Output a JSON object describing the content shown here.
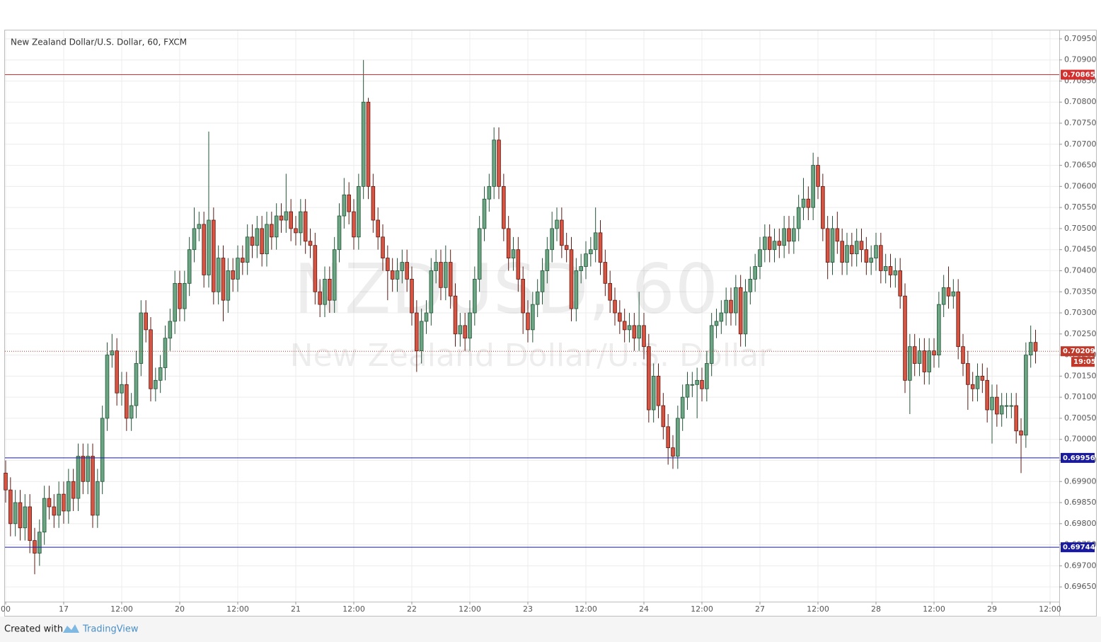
{
  "chart_data": {
    "type": "candlestick",
    "title": "New Zealand Dollar/U.S. Dollar, 60, FXCM",
    "watermark": {
      "symbol": "NZDUSD, 60",
      "description": "New Zealand Dollar/U.S. Dollar"
    },
    "up_color": "#6ba583",
    "up_border": "#225437",
    "down_color": "#d75442",
    "down_border": "#5b1a13",
    "x": [
      0,
      1,
      2,
      3,
      4,
      5,
      6,
      7,
      8,
      9,
      10,
      11,
      12,
      13,
      14,
      15,
      16,
      17,
      18,
      19,
      20,
      21,
      22,
      23,
      24,
      25,
      26,
      27,
      28,
      29,
      30,
      31,
      32,
      33,
      34,
      35,
      36,
      37,
      38,
      39,
      40,
      41,
      42,
      43,
      44,
      45,
      46,
      47,
      48,
      49,
      50,
      51,
      52,
      53,
      54,
      55,
      56,
      57,
      58,
      59,
      60,
      61,
      62,
      63,
      64,
      65,
      66,
      67,
      68,
      69,
      70,
      71,
      72,
      73,
      74,
      75,
      76,
      77,
      78,
      79,
      80,
      81,
      82,
      83,
      84,
      85,
      86,
      87,
      88,
      89,
      90,
      91,
      92,
      93,
      94,
      95,
      96,
      97,
      98,
      99,
      100,
      101,
      102,
      103,
      104,
      105,
      106,
      107,
      108,
      109,
      110,
      111,
      112,
      113,
      114,
      115,
      116,
      117,
      118,
      119,
      120,
      121,
      122,
      123,
      124,
      125,
      126,
      127,
      128,
      129,
      130,
      131,
      132,
      133,
      134,
      135,
      136,
      137,
      138,
      139,
      140,
      141,
      142,
      143,
      144,
      145,
      146,
      147,
      148,
      149,
      150,
      151,
      152,
      153,
      154,
      155,
      156,
      157,
      158,
      159,
      160,
      161,
      162,
      163,
      164,
      165,
      166,
      167,
      168,
      169,
      170,
      171,
      172,
      173,
      174,
      175,
      176,
      177,
      178,
      179,
      180,
      181,
      182,
      183,
      184,
      185,
      186,
      187,
      188,
      189,
      190,
      191,
      192,
      193,
      194,
      195,
      196,
      197,
      198,
      199,
      200,
      201,
      202,
      203,
      204,
      205,
      206,
      207,
      208,
      209,
      210,
      211,
      212,
      213
    ],
    "open": [
      0.6992,
      0.6988,
      0.698,
      0.6985,
      0.6979,
      0.6984,
      0.6976,
      0.6973,
      0.6978,
      0.6986,
      0.6984,
      0.6982,
      0.6987,
      0.6983,
      0.699,
      0.6986,
      0.6996,
      0.699,
      0.6996,
      0.6982,
      0.699,
      0.7005,
      0.702,
      0.7021,
      0.7011,
      0.7013,
      0.7005,
      0.7008,
      0.7018,
      0.703,
      0.7026,
      0.7012,
      0.7014,
      0.7017,
      0.7024,
      0.7028,
      0.7037,
      0.7031,
      0.7037,
      0.7045,
      0.705,
      0.7051,
      0.7039,
      0.7052,
      0.7035,
      0.7043,
      0.7033,
      0.704,
      0.7038,
      0.7043,
      0.7042,
      0.7048,
      0.7046,
      0.705,
      0.7044,
      0.7051,
      0.7048,
      0.7053,
      0.7052,
      0.7054,
      0.705,
      0.7049,
      0.7054,
      0.7047,
      0.7046,
      0.7035,
      0.7032,
      0.7038,
      0.7033,
      0.7045,
      0.7053,
      0.7058,
      0.7054,
      0.7048,
      0.706,
      0.708,
      0.706,
      0.7052,
      0.7048,
      0.7043,
      0.704,
      0.7038,
      0.704,
      0.7042,
      0.7038,
      0.703,
      0.7021,
      0.7028,
      0.703,
      0.704,
      0.7042,
      0.7036,
      0.7042,
      0.7034,
      0.7025,
      0.7027,
      0.7024,
      0.703,
      0.7038,
      0.705,
      0.7057,
      0.706,
      0.7071,
      0.706,
      0.705,
      0.7043,
      0.7045,
      0.7038,
      0.703,
      0.7026,
      0.7032,
      0.7035,
      0.704,
      0.7045,
      0.705,
      0.7052,
      0.7046,
      0.7045,
      0.7031,
      0.704,
      0.7041,
      0.7044,
      0.7045,
      0.7049,
      0.7042,
      0.7037,
      0.7033,
      0.703,
      0.7028,
      0.7026,
      0.7027,
      0.7024,
      0.7027,
      0.7022,
      0.7007,
      0.7015,
      0.7008,
      0.7003,
      0.6998,
      0.6996,
      0.7005,
      0.701,
      0.7013,
      0.7013,
      0.7014,
      0.7012,
      0.7018,
      0.7027,
      0.7028,
      0.703,
      0.7033,
      0.703,
      0.7036,
      0.7025,
      0.7035,
      0.7038,
      0.7041,
      0.7045,
      0.7048,
      0.7045,
      0.7047,
      0.7046,
      0.705,
      0.7047,
      0.705,
      0.7055,
      0.7057,
      0.7055,
      0.7065,
      0.706,
      0.705,
      0.7042,
      0.705,
      0.7047,
      0.7042,
      0.7046,
      0.7044,
      0.7047,
      0.7045,
      0.7042,
      0.7043,
      0.7046,
      0.704,
      0.7041,
      0.7039,
      0.704,
      0.7034,
      0.7014,
      0.7022,
      0.7018,
      0.7021,
      0.7016,
      0.7021,
      0.702,
      0.7032,
      0.7036,
      0.7034,
      0.7035,
      0.7022,
      0.7018,
      0.7013,
      0.7012,
      0.7015,
      0.7014,
      0.7007,
      0.701,
      0.7006,
      0.7008,
      0.7008,
      0.7008,
      0.7002,
      0.7001,
      0.702,
      0.7023
    ],
    "high": [
      0.6995,
      0.6991,
      0.6988,
      0.6988,
      0.6987,
      0.6987,
      0.6979,
      0.6981,
      0.6989,
      0.6989,
      0.6987,
      0.699,
      0.699,
      0.6993,
      0.6993,
      0.6999,
      0.6999,
      0.6999,
      0.6999,
      0.6993,
      0.7008,
      0.7023,
      0.7025,
      0.7024,
      0.7016,
      0.7016,
      0.7011,
      0.7021,
      0.7033,
      0.7033,
      0.7029,
      0.7017,
      0.702,
      0.7027,
      0.7031,
      0.704,
      0.704,
      0.704,
      0.7048,
      0.7055,
      0.7054,
      0.7054,
      0.7073,
      0.7055,
      0.7046,
      0.7046,
      0.7043,
      0.7043,
      0.7046,
      0.7046,
      0.7051,
      0.7051,
      0.7053,
      0.7053,
      0.7054,
      0.7054,
      0.7056,
      0.7056,
      0.7063,
      0.7057,
      0.7053,
      0.7057,
      0.7057,
      0.705,
      0.7049,
      0.7038,
      0.7041,
      0.7041,
      0.7048,
      0.7056,
      0.7062,
      0.7061,
      0.7057,
      0.7063,
      0.709,
      0.7081,
      0.7063,
      0.7055,
      0.7051,
      0.7046,
      0.7043,
      0.7043,
      0.7045,
      0.7045,
      0.7041,
      0.7033,
      0.7031,
      0.7033,
      0.7043,
      0.7045,
      0.7045,
      0.7046,
      0.7045,
      0.7037,
      0.703,
      0.703,
      0.7033,
      0.7041,
      0.7053,
      0.706,
      0.7063,
      0.7074,
      0.7074,
      0.7063,
      0.7053,
      0.7048,
      0.7048,
      0.7041,
      0.7033,
      0.7035,
      0.7038,
      0.7043,
      0.7048,
      0.7054,
      0.7055,
      0.7055,
      0.7049,
      0.7048,
      0.7043,
      0.7044,
      0.7047,
      0.7048,
      0.7055,
      0.7052,
      0.7045,
      0.704,
      0.7036,
      0.7033,
      0.7031,
      0.703,
      0.703,
      0.7035,
      0.703,
      0.7025,
      0.7018,
      0.7018,
      0.7011,
      0.7006,
      0.7001,
      0.7008,
      0.7013,
      0.7016,
      0.7016,
      0.7017,
      0.7017,
      0.7021,
      0.703,
      0.7031,
      0.7033,
      0.7036,
      0.7036,
      0.7039,
      0.7039,
      0.7038,
      0.7041,
      0.7044,
      0.7048,
      0.7051,
      0.7051,
      0.705,
      0.705,
      0.7053,
      0.7053,
      0.7053,
      0.7058,
      0.7062,
      0.706,
      0.7068,
      0.7067,
      0.7063,
      0.7053,
      0.7053,
      0.7054,
      0.705,
      0.7049,
      0.7049,
      0.705,
      0.705,
      0.7048,
      0.7046,
      0.7049,
      0.7049,
      0.7044,
      0.7044,
      0.7043,
      0.7043,
      0.7037,
      0.7025,
      0.7025,
      0.7024,
      0.7024,
      0.7024,
      0.7024,
      0.7035,
      0.7039,
      0.7041,
      0.7038,
      0.7038,
      0.7025,
      0.7021,
      0.7016,
      0.7018,
      0.7018,
      0.7017,
      0.7013,
      0.7013,
      0.7011,
      0.7011,
      0.7011,
      0.7011,
      0.7005,
      0.7023,
      0.7027,
      0.7026
    ],
    "low": [
      0.6985,
      0.6977,
      0.6977,
      0.6976,
      0.6976,
      0.6973,
      0.6968,
      0.697,
      0.6975,
      0.6981,
      0.6979,
      0.6979,
      0.698,
      0.698,
      0.6983,
      0.6983,
      0.6987,
      0.6987,
      0.6979,
      0.6979,
      0.6987,
      0.7002,
      0.7017,
      0.7008,
      0.7008,
      0.7002,
      0.7002,
      0.7005,
      0.7015,
      0.7023,
      0.7009,
      0.7009,
      0.7011,
      0.7014,
      0.7021,
      0.7025,
      0.7028,
      0.7028,
      0.7034,
      0.7042,
      0.7047,
      0.7036,
      0.7036,
      0.7032,
      0.7032,
      0.7028,
      0.703,
      0.7035,
      0.7035,
      0.7039,
      0.7039,
      0.7043,
      0.7043,
      0.7041,
      0.7041,
      0.7045,
      0.7045,
      0.7049,
      0.7049,
      0.7047,
      0.7046,
      0.7046,
      0.7044,
      0.7043,
      0.7032,
      0.7029,
      0.7029,
      0.703,
      0.703,
      0.7042,
      0.705,
      0.7051,
      0.7045,
      0.7045,
      0.7057,
      0.7057,
      0.7049,
      0.7045,
      0.704,
      0.7033,
      0.7035,
      0.7035,
      0.7037,
      0.7035,
      0.7027,
      0.7016,
      0.7018,
      0.7025,
      0.7027,
      0.7037,
      0.7033,
      0.7033,
      0.7031,
      0.7022,
      0.7022,
      0.7021,
      0.7021,
      0.7027,
      0.7035,
      0.7047,
      0.7054,
      0.7057,
      0.7057,
      0.7047,
      0.704,
      0.704,
      0.7035,
      0.7025,
      0.7023,
      0.7023,
      0.7029,
      0.7032,
      0.7037,
      0.7042,
      0.7047,
      0.7043,
      0.7042,
      0.7028,
      0.7028,
      0.7037,
      0.7038,
      0.7041,
      0.7042,
      0.7039,
      0.7034,
      0.703,
      0.7027,
      0.7025,
      0.7023,
      0.7023,
      0.7021,
      0.7021,
      0.7019,
      0.7004,
      0.7004,
      0.7005,
      0.7,
      0.6994,
      0.6993,
      0.6993,
      0.7002,
      0.7007,
      0.701,
      0.7005,
      0.7009,
      0.7009,
      0.7015,
      0.7024,
      0.7025,
      0.7027,
      0.7027,
      0.7027,
      0.7022,
      0.7022,
      0.7032,
      0.7035,
      0.7038,
      0.7042,
      0.7042,
      0.7042,
      0.7043,
      0.7043,
      0.7044,
      0.7044,
      0.7047,
      0.7052,
      0.7052,
      0.7052,
      0.7057,
      0.7047,
      0.7038,
      0.7039,
      0.7044,
      0.7039,
      0.7039,
      0.7041,
      0.7041,
      0.7042,
      0.7039,
      0.7039,
      0.704,
      0.7037,
      0.7037,
      0.7036,
      0.7036,
      0.7031,
      0.7011,
      0.7006,
      0.7015,
      0.7015,
      0.7013,
      0.7013,
      0.7017,
      0.7017,
      0.7029,
      0.7031,
      0.7031,
      0.7019,
      0.7015,
      0.7007,
      0.7009,
      0.7009,
      0.7011,
      0.7004,
      0.6999,
      0.7003,
      0.7003,
      0.7005,
      0.7005,
      0.6999,
      0.6992,
      0.6998,
      0.7017,
      0.7018
    ],
    "close": [
      0.6988,
      0.698,
      0.6985,
      0.6979,
      0.6984,
      0.6976,
      0.6973,
      0.6978,
      0.6986,
      0.6984,
      0.6982,
      0.6987,
      0.6983,
      0.699,
      0.6986,
      0.6996,
      0.699,
      0.6996,
      0.6982,
      0.699,
      0.7005,
      0.702,
      0.7021,
      0.7011,
      0.7013,
      0.7005,
      0.7008,
      0.7018,
      0.703,
      0.7026,
      0.7012,
      0.7014,
      0.7017,
      0.7024,
      0.7028,
      0.7037,
      0.7031,
      0.7037,
      0.7045,
      0.705,
      0.7051,
      0.7039,
      0.7052,
      0.7035,
      0.7043,
      0.7033,
      0.704,
      0.7038,
      0.7043,
      0.7042,
      0.7048,
      0.7046,
      0.705,
      0.7044,
      0.7051,
      0.7048,
      0.7053,
      0.7052,
      0.7054,
      0.705,
      0.7049,
      0.7054,
      0.7047,
      0.7046,
      0.7035,
      0.7032,
      0.7038,
      0.7033,
      0.7045,
      0.7053,
      0.7058,
      0.7054,
      0.7048,
      0.706,
      0.708,
      0.706,
      0.7052,
      0.7048,
      0.7043,
      0.704,
      0.7038,
      0.704,
      0.7042,
      0.7038,
      0.703,
      0.7021,
      0.7028,
      0.703,
      0.704,
      0.7042,
      0.7036,
      0.7042,
      0.7034,
      0.7025,
      0.7027,
      0.7024,
      0.703,
      0.7038,
      0.705,
      0.7057,
      0.706,
      0.7071,
      0.706,
      0.705,
      0.7043,
      0.7045,
      0.7038,
      0.703,
      0.7026,
      0.7032,
      0.7035,
      0.704,
      0.7045,
      0.705,
      0.7052,
      0.7046,
      0.7045,
      0.7031,
      0.704,
      0.7041,
      0.7044,
      0.7045,
      0.7049,
      0.7042,
      0.7037,
      0.7033,
      0.703,
      0.7028,
      0.7026,
      0.7027,
      0.7024,
      0.7027,
      0.7022,
      0.7007,
      0.7015,
      0.7008,
      0.7003,
      0.6998,
      0.6996,
      0.7005,
      0.701,
      0.7013,
      0.7013,
      0.7014,
      0.7012,
      0.7018,
      0.7027,
      0.7028,
      0.703,
      0.7033,
      0.703,
      0.7036,
      0.7025,
      0.7035,
      0.7038,
      0.7041,
      0.7045,
      0.7048,
      0.7045,
      0.7047,
      0.7046,
      0.705,
      0.7047,
      0.705,
      0.7055,
      0.7057,
      0.7055,
      0.7065,
      0.706,
      0.705,
      0.7042,
      0.705,
      0.7047,
      0.7042,
      0.7046,
      0.7044,
      0.7047,
      0.7045,
      0.7042,
      0.7043,
      0.7046,
      0.704,
      0.7041,
      0.7039,
      0.704,
      0.7034,
      0.7014,
      0.7022,
      0.7018,
      0.7021,
      0.7016,
      0.7021,
      0.702,
      0.7032,
      0.7036,
      0.7034,
      0.7035,
      0.7022,
      0.7018,
      0.7013,
      0.7012,
      0.7015,
      0.7014,
      0.7007,
      0.701,
      0.7006,
      0.7008,
      0.7008,
      0.7008,
      0.7002,
      0.7001,
      0.702,
      0.7023,
      0.70209
    ],
    "xlim": [
      0,
      217.9
    ],
    "xticks": [
      {
        "value": 0,
        "label": "00"
      },
      {
        "value": 12,
        "label": "17"
      },
      {
        "value": 24,
        "label": "12:00"
      },
      {
        "value": 36,
        "label": "20"
      },
      {
        "value": 48,
        "label": "12:00"
      },
      {
        "value": 60,
        "label": "21"
      },
      {
        "value": 72,
        "label": "12:00"
      },
      {
        "value": 84,
        "label": "22"
      },
      {
        "value": 96,
        "label": "12:00"
      },
      {
        "value": 108,
        "label": "23"
      },
      {
        "value": 120,
        "label": "12:00"
      },
      {
        "value": 132,
        "label": "24"
      },
      {
        "value": 144,
        "label": "12:00"
      },
      {
        "value": 156,
        "label": "27"
      },
      {
        "value": 168,
        "label": "12:00"
      },
      {
        "value": 180,
        "label": "28"
      },
      {
        "value": 192,
        "label": "12:00"
      },
      {
        "value": 204,
        "label": "29"
      },
      {
        "value": 216,
        "label": "12:00"
      }
    ],
    "ylim": [
      0.69615,
      0.7097
    ],
    "yticks": [
      {
        "value": 0.6965,
        "label": "0.69650"
      },
      {
        "value": 0.697,
        "label": "0.69700"
      },
      {
        "value": 0.6975,
        "label": "0.69750"
      },
      {
        "value": 0.698,
        "label": "0.69800"
      },
      {
        "value": 0.6985,
        "label": "0.69850"
      },
      {
        "value": 0.699,
        "label": "0.69900"
      },
      {
        "value": 0.6995,
        "label": "0.69950"
      },
      {
        "value": 0.7,
        "label": "0.70000"
      },
      {
        "value": 0.7005,
        "label": "0.70050"
      },
      {
        "value": 0.701,
        "label": "0.70100"
      },
      {
        "value": 0.7015,
        "label": "0.70150"
      },
      {
        "value": 0.702,
        "label": "0.70200"
      },
      {
        "value": 0.7025,
        "label": "0.70250"
      },
      {
        "value": 0.703,
        "label": "0.70300"
      },
      {
        "value": 0.7035,
        "label": "0.70350"
      },
      {
        "value": 0.704,
        "label": "0.70400"
      },
      {
        "value": 0.7045,
        "label": "0.70450"
      },
      {
        "value": 0.705,
        "label": "0.70500"
      },
      {
        "value": 0.7055,
        "label": "0.70550"
      },
      {
        "value": 0.706,
        "label": "0.70600"
      },
      {
        "value": 0.7065,
        "label": "0.70650"
      },
      {
        "value": 0.707,
        "label": "0.70700"
      },
      {
        "value": 0.7075,
        "label": "0.70750"
      },
      {
        "value": 0.708,
        "label": "0.70800"
      },
      {
        "value": 0.7085,
        "label": "0.70850"
      },
      {
        "value": 0.709,
        "label": "0.70900"
      },
      {
        "value": 0.7095,
        "label": "0.70950"
      }
    ],
    "grid": true,
    "levels": [
      {
        "value": 0.70865,
        "color": "#d32f2f"
      },
      {
        "value": 0.69956,
        "color": "#1a1a9c"
      },
      {
        "value": 0.69744,
        "color": "#1a1a9c"
      }
    ],
    "last_price": 0.70209,
    "last_price_color": "#c0392b",
    "countdown": "19:05"
  },
  "footer": {
    "created_with": "Created with",
    "brand": "TradingView"
  }
}
